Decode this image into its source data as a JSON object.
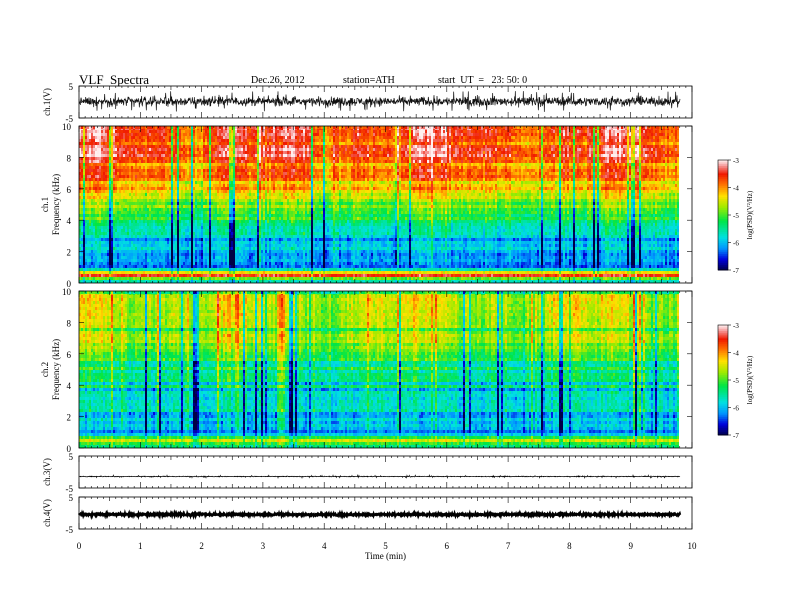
{
  "header": {
    "title": "VLF  Spectra",
    "date": "Dec.26, 2012",
    "station": "station=ATH",
    "start": "start  UT  =   23: 50: 0"
  },
  "chart_data": [
    {
      "type": "line",
      "panel": "ch1-waveform",
      "ylabel": "ch.1(V)",
      "ylim": [
        -5,
        5
      ],
      "yticks": [
        "5",
        "-5"
      ],
      "xlim": [
        0,
        10
      ],
      "x_end": 9.8,
      "baseline": 0.2,
      "amplitude_typical": 1.2,
      "amplitude_spike": 3.5
    },
    {
      "type": "heatmap",
      "panel": "ch1-spectrogram",
      "ylabel": "Frequency  (kHz)",
      "ylabel2": "ch.1",
      "ylim": [
        0,
        10
      ],
      "yticks": [
        "0",
        "2",
        "4",
        "6",
        "8",
        "10"
      ],
      "xlim": [
        0,
        10
      ],
      "x_end": 9.8,
      "colorbar": {
        "label": "log(PSD)(V²/Hz)",
        "range": [
          -7,
          -3
        ],
        "ticks": [
          "-3",
          "-4",
          "-5",
          "-6",
          "-7"
        ]
      },
      "level_profile": [
        {
          "f": 0.0,
          "v": -5.5
        },
        {
          "f": 0.5,
          "v": -3.6
        },
        {
          "f": 1.0,
          "v": -6.3
        },
        {
          "f": 2.0,
          "v": -5.9
        },
        {
          "f": 3.0,
          "v": -5.7
        },
        {
          "f": 4.0,
          "v": -5.3
        },
        {
          "f": 5.0,
          "v": -4.8
        },
        {
          "f": 6.0,
          "v": -4.2
        },
        {
          "f": 7.0,
          "v": -3.8
        },
        {
          "f": 8.5,
          "v": -3.5
        },
        {
          "f": 10.0,
          "v": -3.5
        }
      ]
    },
    {
      "type": "heatmap",
      "panel": "ch2-spectrogram",
      "ylabel": "Frequency  (kHz)",
      "ylabel2": "ch.2",
      "ylim": [
        0,
        10
      ],
      "yticks": [
        "0",
        "2",
        "4",
        "6",
        "8",
        "10"
      ],
      "xlim": [
        0,
        10
      ],
      "x_end": 9.8,
      "colorbar": {
        "label": "log(PSD)(V²/Hz)",
        "range": [
          -7,
          -3
        ],
        "ticks": [
          "-3",
          "-4",
          "-5",
          "-6",
          "-7"
        ]
      },
      "level_profile": [
        {
          "f": 0.0,
          "v": -5.5
        },
        {
          "f": 0.5,
          "v": -4.5
        },
        {
          "f": 1.0,
          "v": -6.3
        },
        {
          "f": 2.0,
          "v": -5.6
        },
        {
          "f": 3.0,
          "v": -5.7
        },
        {
          "f": 4.0,
          "v": -5.4
        },
        {
          "f": 6.0,
          "v": -4.9
        },
        {
          "f": 8.0,
          "v": -4.6
        },
        {
          "f": 10.0,
          "v": -4.6
        }
      ]
    },
    {
      "type": "line",
      "panel": "ch3-waveform",
      "ylabel": "ch.3(V)",
      "ylim": [
        -5,
        5
      ],
      "yticks": [
        "5",
        "-5"
      ],
      "xlim": [
        0,
        10
      ],
      "x_end": 9.8,
      "baseline": -1.5,
      "amplitude_typical": 0.1,
      "amplitude_spike": 0.4
    },
    {
      "type": "line",
      "panel": "ch4-waveform",
      "ylabel": "ch.4(V)",
      "ylim": [
        -5,
        5
      ],
      "yticks": [
        "5",
        "-5"
      ],
      "xlim": [
        0,
        10
      ],
      "x_end": 9.8,
      "baseline": -0.5,
      "amplitude_typical": 0.25,
      "amplitude_spike": 0.3
    }
  ],
  "xaxis": {
    "label": "Time  (min)",
    "ticks": [
      "0",
      "1",
      "2",
      "3",
      "4",
      "5",
      "6",
      "7",
      "8",
      "9",
      "10"
    ]
  }
}
